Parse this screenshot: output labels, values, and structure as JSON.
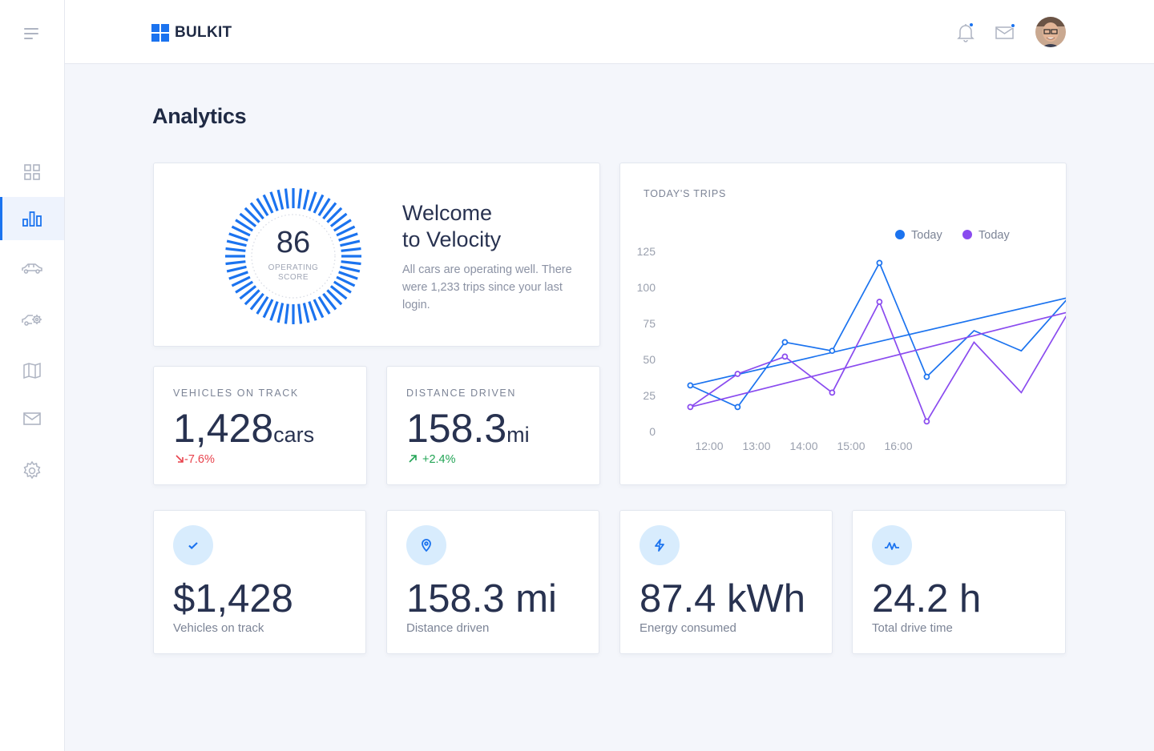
{
  "app": {
    "brand": "BULKIT"
  },
  "colors": {
    "accent": "#1b73ef",
    "purple": "#8a4bef",
    "down": "#e8424c",
    "up": "#22a455"
  },
  "sidebar": {
    "items": [
      {
        "icon": "grid-icon",
        "active": false
      },
      {
        "icon": "bar-chart-icon",
        "active": true
      },
      {
        "icon": "car-icon",
        "active": false
      },
      {
        "icon": "car-settings-icon",
        "active": false
      },
      {
        "icon": "map-icon",
        "active": false
      },
      {
        "icon": "mail-icon",
        "active": false
      },
      {
        "icon": "gear-icon",
        "active": false
      }
    ]
  },
  "header": {
    "icons": [
      "bell-icon",
      "mail-icon",
      "avatar"
    ]
  },
  "page": {
    "title": "Analytics"
  },
  "welcome": {
    "score": "86",
    "score_label": "OPERATING SCORE",
    "title_line1": "Welcome",
    "title_line2": "to Velocity",
    "text": "All cars are operating well. There were 1,233 trips since your last login."
  },
  "stats": [
    {
      "label": "VEHICLES ON TRACK",
      "value": "1,428",
      "unit": "cars",
      "change": "-7.6%",
      "direction": "down"
    },
    {
      "label": "DISTANCE DRIVEN",
      "value": "158.3",
      "unit": "mi",
      "change": "+2.4%",
      "direction": "up"
    }
  ],
  "chart_data": {
    "type": "line",
    "title": "TODAY'S TRIPS",
    "y_ticks": [
      "0",
      "25",
      "50",
      "75",
      "100",
      "125"
    ],
    "x_ticks": [
      "12:00",
      "13:00",
      "14:00",
      "15:00",
      "16:00"
    ],
    "ylim": [
      0,
      125
    ],
    "legend_position": "top-right",
    "grid": false,
    "series": [
      {
        "name": "Today",
        "color": "#1b73ef",
        "values": [
          [
            11.6,
            32
          ],
          [
            12.6,
            17
          ],
          [
            13.6,
            62
          ],
          [
            14.6,
            56
          ],
          [
            15.6,
            117
          ],
          [
            16.6,
            38
          ],
          [
            17.6,
            70
          ],
          [
            18.6,
            56
          ],
          [
            19.6,
            93
          ],
          [
            11.6,
            32
          ]
        ]
      },
      {
        "name": "Today",
        "color": "#8a4bef",
        "values": [
          [
            11.6,
            17
          ],
          [
            12.6,
            40
          ],
          [
            13.6,
            52
          ],
          [
            14.6,
            27
          ],
          [
            15.6,
            90
          ],
          [
            16.6,
            7
          ],
          [
            17.6,
            62
          ],
          [
            18.6,
            27
          ],
          [
            19.6,
            83
          ],
          [
            11.6,
            17
          ]
        ]
      }
    ]
  },
  "kpis": [
    {
      "icon": "check-icon",
      "value": "$1,428",
      "label": "Vehicles on track"
    },
    {
      "icon": "location-pin-icon",
      "value": "158.3 mi",
      "label": "Distance driven"
    },
    {
      "icon": "lightning-icon",
      "value": "87.4 kWh",
      "label": "Energy consumed"
    },
    {
      "icon": "activity-icon",
      "value": "24.2 h",
      "label": "Total drive time"
    }
  ]
}
